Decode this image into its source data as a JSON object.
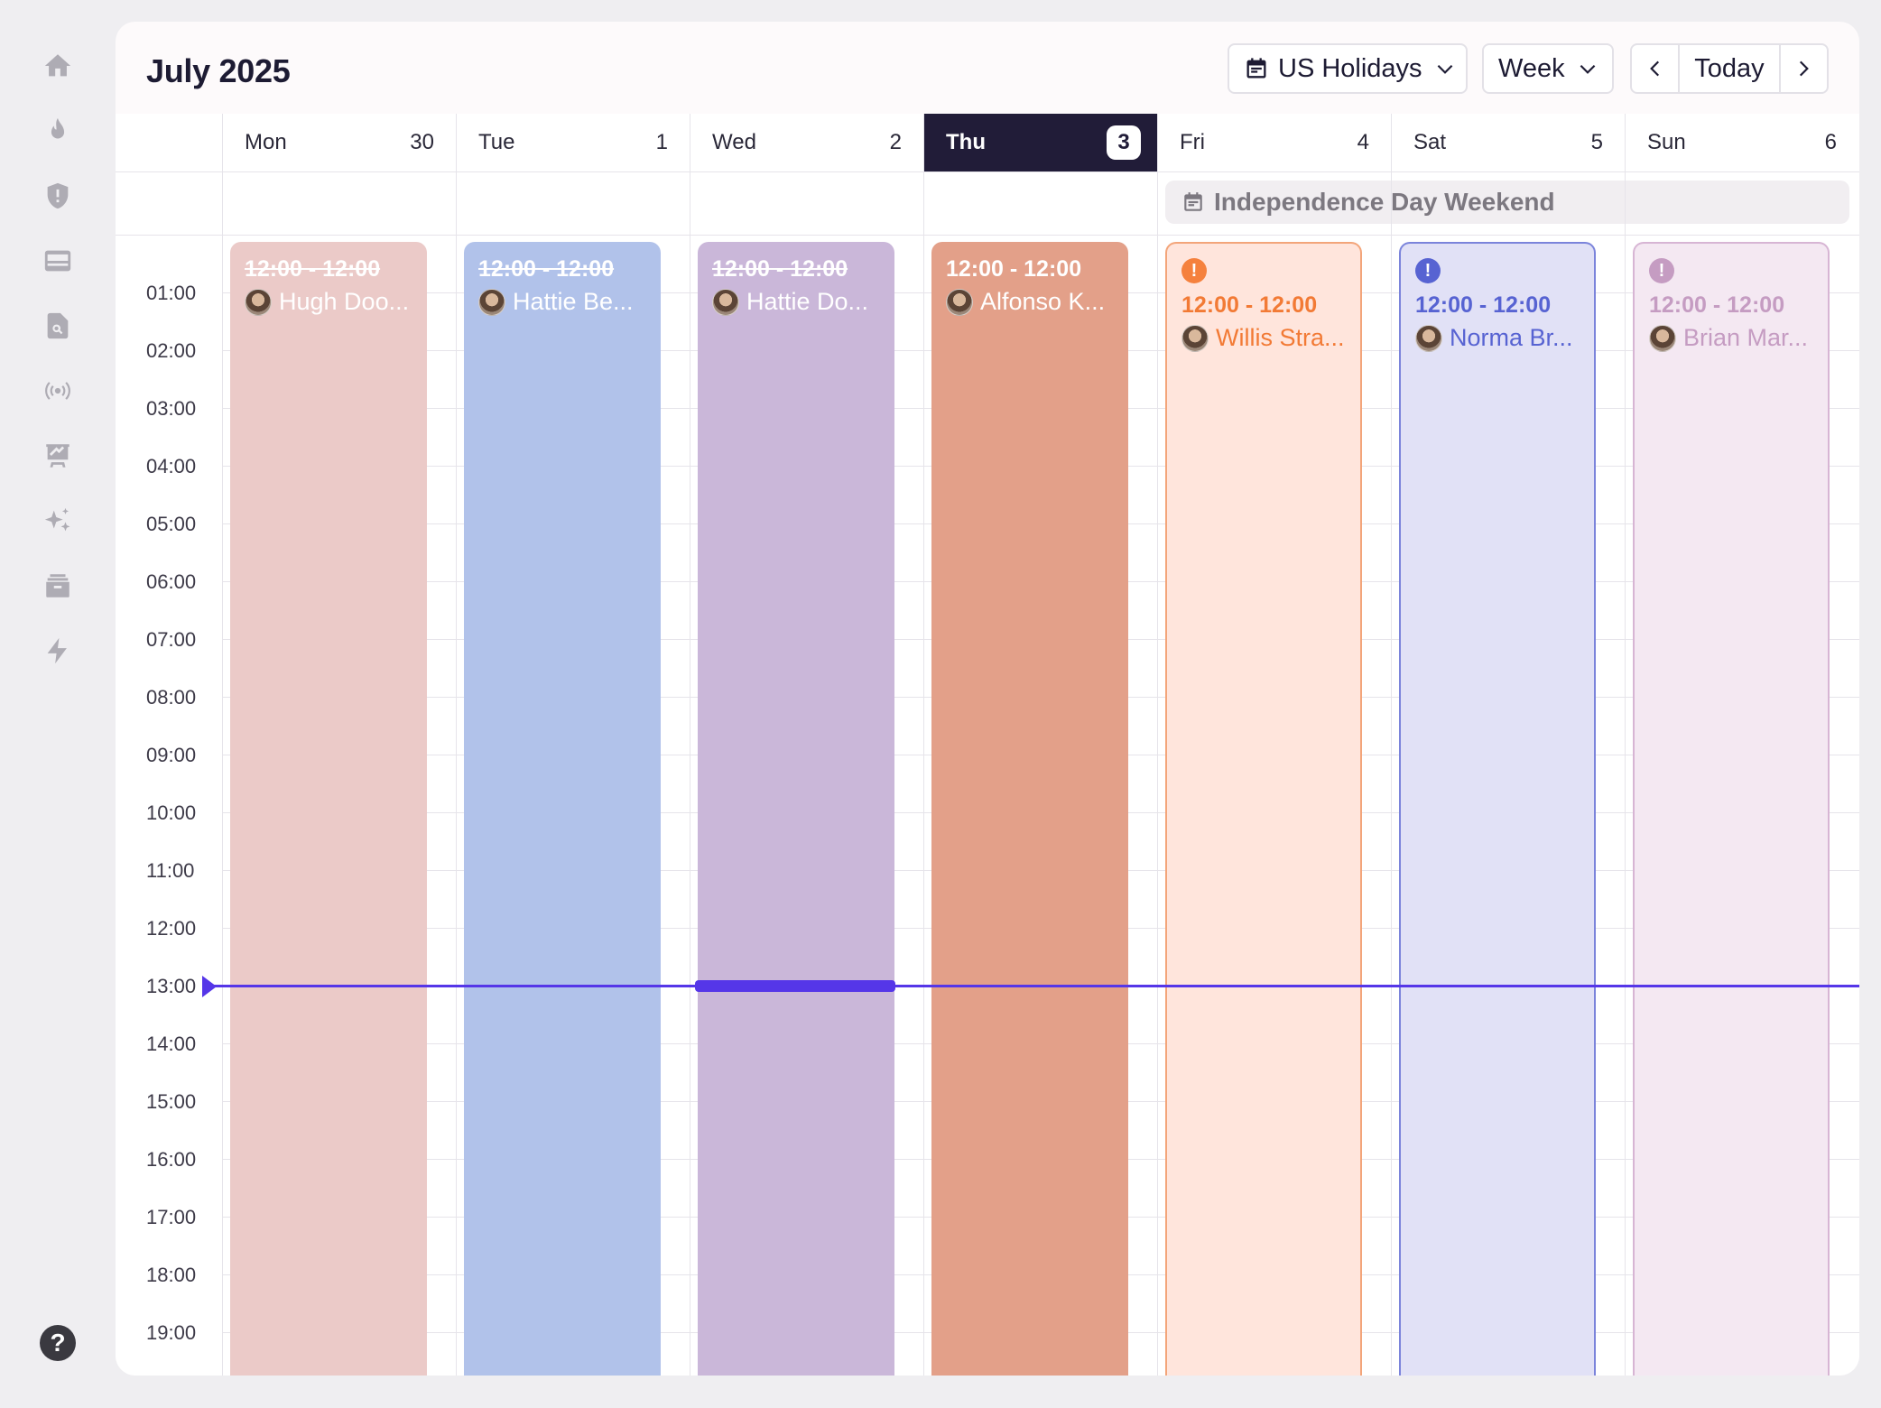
{
  "header": {
    "title": "July 2025",
    "holidays_label": "US Holidays",
    "view_label": "Week",
    "today_label": "Today"
  },
  "sidebar": {
    "icons": [
      "home-icon",
      "flame-icon",
      "shield-icon",
      "inbox-icon",
      "file-search-icon",
      "broadcast-icon",
      "presentation-chart-icon",
      "sparkles-icon",
      "archive-icon",
      "lightning-icon"
    ],
    "help": "?"
  },
  "days": [
    {
      "name": "Mon",
      "num": "30"
    },
    {
      "name": "Tue",
      "num": "1"
    },
    {
      "name": "Wed",
      "num": "2"
    },
    {
      "name": "Thu",
      "num": "3"
    },
    {
      "name": "Fri",
      "num": "4"
    },
    {
      "name": "Sat",
      "num": "5"
    },
    {
      "name": "Sun",
      "num": "6"
    }
  ],
  "holiday_banner": "Independence Day Weekend",
  "times": [
    "01:00",
    "02:00",
    "03:00",
    "04:00",
    "05:00",
    "06:00",
    "07:00",
    "08:00",
    "09:00",
    "10:00",
    "11:00",
    "12:00",
    "13:00",
    "14:00",
    "15:00",
    "16:00",
    "17:00",
    "18:00",
    "19:00"
  ],
  "events": [
    {
      "time": "12:00 - 12:00",
      "person": "Hugh Doo...",
      "bg": "#ebcac8",
      "fg": "#ffffff",
      "border": "",
      "past": true
    },
    {
      "time": "12:00 - 12:00",
      "person": "Hattie Be...",
      "bg": "#b1c2ea",
      "fg": "#ffffff",
      "border": "",
      "past": true
    },
    {
      "time": "12:00 - 12:00",
      "person": "Hattie Do...",
      "bg": "#cab7d9",
      "fg": "#ffffff",
      "border": "",
      "past": true
    },
    {
      "time": "12:00 - 12:00",
      "person": "Alfonso K...",
      "bg": "#e3a089",
      "fg": "#ffffff",
      "border": "",
      "past": false
    },
    {
      "time": "12:00 - 12:00",
      "person": "Willis Stra...",
      "bg": "#ffe5dc",
      "fg": "#f27a35",
      "border": "#f3a57a",
      "past": false,
      "alert": "#f5813d"
    },
    {
      "time": "12:00 - 12:00",
      "person": "Norma Br...",
      "bg": "#e1e1f6",
      "fg": "#5763d2",
      "border": "#7b84db",
      "past": false,
      "alert": "#5763d2"
    },
    {
      "time": "12:00 - 12:00",
      "person": "Brian Mar...",
      "bg": "#f4e8f2",
      "fg": "#c59cc2",
      "border": "#d7b5d4",
      "past": false,
      "alert": "#c59cc2"
    }
  ]
}
